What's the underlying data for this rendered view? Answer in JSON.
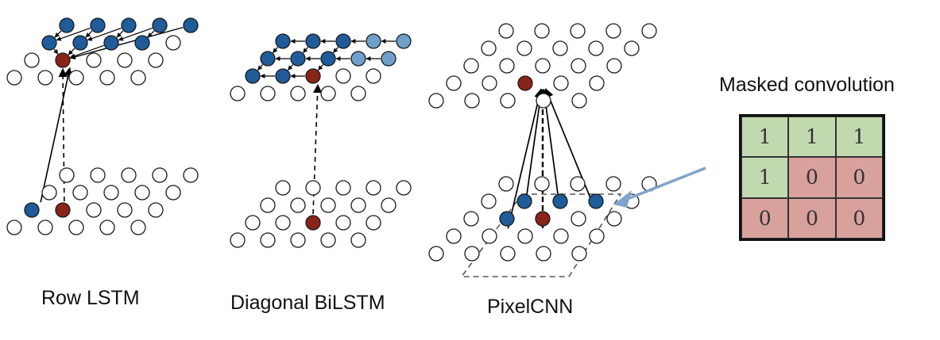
{
  "captions": {
    "row_lstm": "Row LSTM",
    "diagonal_bilstm": "Diagonal BiLSTM",
    "pixelcnn": "PixelCNN"
  },
  "mask": {
    "title": "Masked convolution",
    "cells": [
      [
        "1",
        "1",
        "1"
      ],
      [
        "1",
        "0",
        "0"
      ],
      [
        "0",
        "0",
        "0"
      ]
    ],
    "colors": {
      "on": "#c2d9b0",
      "off": "#d8a19c"
    }
  },
  "colors": {
    "dark_blue": "#1f5c99",
    "light_blue": "#6f9fca",
    "red": "#8a2419",
    "node_stroke": "#1a1a1a",
    "pointer": "#7fa3cc"
  }
}
